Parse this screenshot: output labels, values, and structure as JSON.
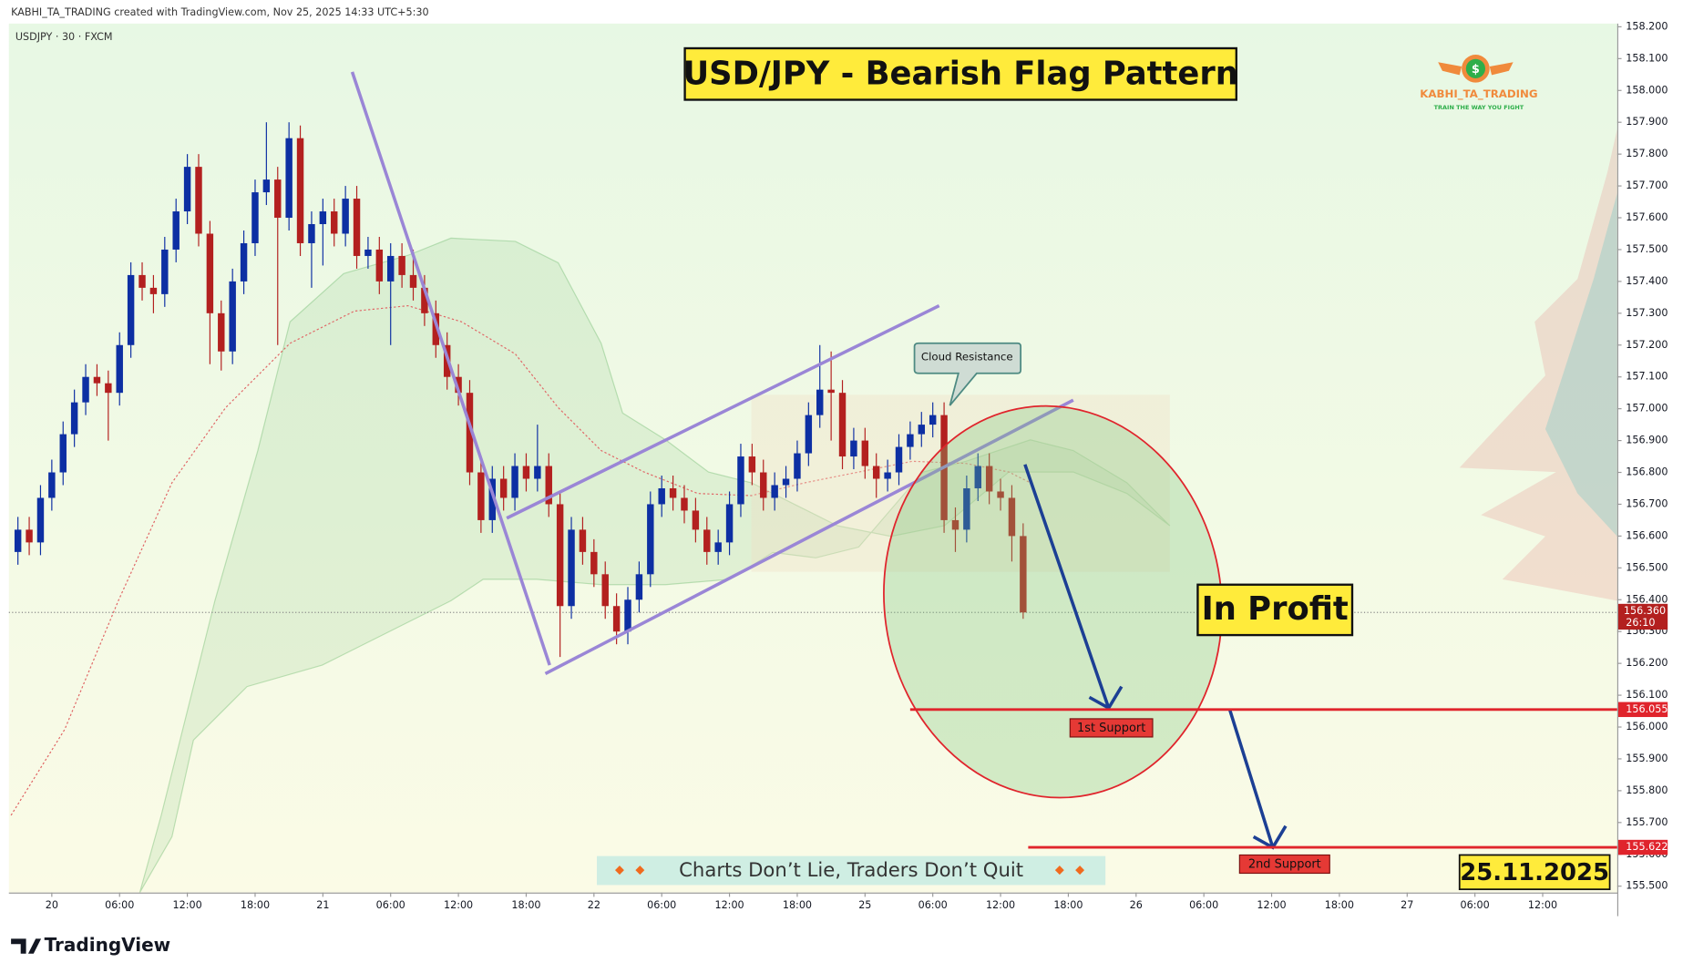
{
  "header": "KABHI_TA_TRADING created with TradingView.com, Nov 25, 2025 14:33 UTC+5:30",
  "symbol": "USDJPY · 30 · FXCM",
  "brand": "TradingView",
  "logo": {
    "symbol": "$",
    "name": "KABHI_TA_TRADING",
    "slogan": "TRAIN THE WAY YOU FIGHT"
  },
  "chart_data": {
    "type": "candlestick",
    "title": "USD/JPY - Bearish Flag  Pattern",
    "up_color": "#0d2fa3",
    "down_color": "#b3201f",
    "x": [
      -3,
      -2,
      -1,
      0,
      1,
      2,
      3,
      4,
      5,
      6,
      7,
      8,
      9,
      10,
      11,
      12,
      13,
      14,
      15,
      16,
      17,
      18,
      19,
      20,
      21,
      22,
      23,
      24,
      25,
      26,
      27,
      28,
      29,
      30,
      31,
      32,
      33,
      34,
      35,
      36,
      37,
      38,
      39,
      40,
      41,
      42,
      43,
      44,
      45,
      46,
      47,
      48,
      49,
      50,
      51,
      52,
      53,
      54,
      55,
      56,
      57,
      58,
      59,
      60,
      61,
      62,
      63,
      64,
      65,
      66,
      67,
      68,
      69,
      70,
      71,
      72,
      73,
      74,
      75,
      76,
      77,
      78,
      79,
      80,
      81,
      82,
      83,
      84,
      85,
      86
    ],
    "open": [
      156.55,
      156.62,
      156.58,
      156.72,
      156.8,
      156.92,
      157.02,
      157.1,
      157.08,
      157.05,
      157.2,
      157.42,
      157.38,
      157.36,
      157.5,
      157.62,
      157.76,
      157.55,
      157.3,
      157.18,
      157.4,
      157.52,
      157.68,
      157.72,
      157.6,
      157.85,
      157.52,
      157.58,
      157.62,
      157.55,
      157.66,
      157.48,
      157.5,
      157.4,
      157.48,
      157.42,
      157.38,
      157.3,
      157.2,
      157.1,
      157.05,
      156.8,
      156.65,
      156.78,
      156.72,
      156.82,
      156.78,
      156.82,
      156.7,
      156.38,
      156.62,
      156.55,
      156.48,
      156.38,
      156.3,
      156.4,
      156.48,
      156.7,
      156.75,
      156.72,
      156.68,
      156.62,
      156.55,
      156.58,
      156.7,
      156.85,
      156.8,
      156.72,
      156.76,
      156.78,
      156.86,
      156.98,
      157.06,
      157.05,
      156.85,
      156.9,
      156.82,
      156.78,
      156.8,
      156.88,
      156.92,
      156.95,
      156.98,
      156.65,
      156.62,
      156.75,
      156.82,
      156.74,
      156.72,
      156.6
    ],
    "high": [
      156.66,
      156.66,
      156.76,
      156.84,
      156.96,
      157.06,
      157.14,
      157.14,
      157.12,
      157.24,
      157.46,
      157.46,
      157.42,
      157.54,
      157.66,
      157.8,
      157.8,
      157.59,
      157.34,
      157.44,
      157.56,
      157.72,
      157.9,
      157.76,
      157.9,
      157.89,
      157.62,
      157.66,
      157.66,
      157.7,
      157.7,
      157.54,
      157.54,
      157.52,
      157.52,
      157.5,
      157.42,
      157.34,
      157.24,
      157.14,
      157.09,
      156.84,
      156.82,
      156.82,
      156.86,
      156.86,
      156.95,
      156.86,
      156.74,
      156.66,
      156.66,
      156.59,
      156.52,
      156.42,
      156.44,
      156.52,
      156.74,
      156.79,
      156.79,
      156.76,
      156.72,
      156.66,
      156.62,
      156.74,
      156.89,
      156.89,
      156.84,
      156.8,
      156.82,
      156.9,
      157.02,
      157.2,
      157.18,
      157.09,
      156.94,
      156.94,
      156.86,
      156.84,
      156.92,
      156.96,
      156.99,
      157.02,
      157.02,
      156.69,
      156.79,
      156.86,
      156.86,
      156.78,
      156.76,
      156.64
    ],
    "low": [
      156.51,
      156.54,
      156.54,
      156.68,
      156.76,
      156.88,
      156.98,
      157.04,
      156.9,
      157.01,
      157.16,
      157.34,
      157.3,
      157.32,
      157.46,
      157.58,
      157.51,
      157.14,
      157.12,
      157.14,
      157.36,
      157.48,
      157.64,
      157.2,
      157.56,
      157.48,
      157.38,
      157.45,
      157.51,
      157.51,
      157.44,
      157.44,
      157.36,
      157.2,
      157.38,
      157.34,
      157.26,
      157.16,
      157.06,
      157.01,
      156.76,
      156.61,
      156.61,
      156.68,
      156.68,
      156.74,
      156.74,
      156.66,
      156.22,
      156.34,
      156.51,
      156.44,
      156.34,
      156.26,
      156.26,
      156.36,
      156.44,
      156.66,
      156.68,
      156.64,
      156.58,
      156.51,
      156.51,
      156.54,
      156.66,
      156.76,
      156.68,
      156.68,
      156.72,
      156.74,
      156.82,
      156.94,
      156.9,
      156.81,
      156.81,
      156.78,
      156.72,
      156.74,
      156.76,
      156.84,
      156.88,
      156.91,
      156.61,
      156.55,
      156.58,
      156.71,
      156.7,
      156.68,
      156.52,
      156.34
    ],
    "close": [
      156.62,
      156.58,
      156.72,
      156.8,
      156.92,
      157.02,
      157.1,
      157.08,
      157.05,
      157.2,
      157.42,
      157.38,
      157.36,
      157.5,
      157.62,
      157.76,
      157.55,
      157.3,
      157.18,
      157.4,
      157.52,
      157.68,
      157.72,
      157.6,
      157.85,
      157.52,
      157.58,
      157.62,
      157.55,
      157.66,
      157.48,
      157.5,
      157.4,
      157.48,
      157.42,
      157.38,
      157.3,
      157.2,
      157.1,
      157.05,
      156.8,
      156.65,
      156.78,
      156.72,
      156.82,
      156.78,
      156.82,
      156.7,
      156.38,
      156.62,
      156.55,
      156.48,
      156.38,
      156.3,
      156.4,
      156.48,
      156.7,
      156.75,
      156.72,
      156.68,
      156.62,
      156.55,
      156.58,
      156.7,
      156.85,
      156.8,
      156.72,
      156.76,
      156.78,
      156.86,
      156.98,
      157.06,
      157.05,
      156.85,
      156.9,
      156.82,
      156.78,
      156.8,
      156.88,
      156.92,
      156.95,
      156.98,
      156.65,
      156.62,
      156.75,
      156.82,
      156.74,
      156.72,
      156.6,
      156.36
    ],
    "xlim": [
      -3.8,
      138.6
    ],
    "xticks": [
      {
        "value": 0,
        "label": "20"
      },
      {
        "value": 6,
        "label": "06:00"
      },
      {
        "value": 12,
        "label": "12:00"
      },
      {
        "value": 18,
        "label": "18:00"
      },
      {
        "value": 24,
        "label": "21"
      },
      {
        "value": 30,
        "label": "06:00"
      },
      {
        "value": 36,
        "label": "12:00"
      },
      {
        "value": 42,
        "label": "18:00"
      },
      {
        "value": 48,
        "label": "22"
      },
      {
        "value": 54,
        "label": "06:00"
      },
      {
        "value": 60,
        "label": "12:00"
      },
      {
        "value": 66,
        "label": "18:00"
      },
      {
        "value": 72,
        "label": "25"
      },
      {
        "value": 78,
        "label": "06:00"
      },
      {
        "value": 84,
        "label": "12:00"
      },
      {
        "value": 90,
        "label": "18:00"
      },
      {
        "value": 96,
        "label": "26"
      },
      {
        "value": 102,
        "label": "06:00"
      },
      {
        "value": 108,
        "label": "12:00"
      },
      {
        "value": 114,
        "label": "18:00"
      },
      {
        "value": 120,
        "label": "27"
      },
      {
        "value": 126,
        "label": "06:00"
      },
      {
        "value": 132,
        "label": "12:00"
      }
    ],
    "ylim": [
      155.48,
      158.21
    ],
    "yticks": [
      {
        "value": 155.5,
        "label": "155.500"
      },
      {
        "value": 155.6,
        "label": "155.600"
      },
      {
        "value": 155.7,
        "label": "155.700"
      },
      {
        "value": 155.8,
        "label": "155.800"
      },
      {
        "value": 155.9,
        "label": "155.900"
      },
      {
        "value": 156.0,
        "label": "156.000"
      },
      {
        "value": 156.1,
        "label": "156.100"
      },
      {
        "value": 156.2,
        "label": "156.200"
      },
      {
        "value": 156.3,
        "label": "156.300"
      },
      {
        "value": 156.4,
        "label": "156.400"
      },
      {
        "value": 156.5,
        "label": "156.500"
      },
      {
        "value": 156.6,
        "label": "156.600"
      },
      {
        "value": 156.7,
        "label": "156.700"
      },
      {
        "value": 156.8,
        "label": "156.800"
      },
      {
        "value": 156.9,
        "label": "156.900"
      },
      {
        "value": 157.0,
        "label": "157.000"
      },
      {
        "value": 157.1,
        "label": "157.100"
      },
      {
        "value": 157.2,
        "label": "157.200"
      },
      {
        "value": 157.3,
        "label": "157.300"
      },
      {
        "value": 157.4,
        "label": "157.400"
      },
      {
        "value": 157.5,
        "label": "157.500"
      },
      {
        "value": 157.6,
        "label": "157.600"
      },
      {
        "value": 157.7,
        "label": "157.700"
      },
      {
        "value": 157.8,
        "label": "157.800"
      },
      {
        "value": 157.9,
        "label": "157.900"
      },
      {
        "value": 158.0,
        "label": "158.000"
      },
      {
        "value": 158.1,
        "label": "158.100"
      },
      {
        "value": 158.2,
        "label": "158.200"
      }
    ],
    "last_price": {
      "value": 156.36,
      "label": "156.360",
      "countdown": "26:10"
    },
    "levels": [
      {
        "name": "1st Support",
        "value": 156.055,
        "color": "#e0242c"
      },
      {
        "name": "2nd Support",
        "value": 155.622,
        "color": "#e0242c"
      }
    ],
    "annotations": {
      "cloud": "Cloud Resistance",
      "profit": "In Profit",
      "motto": "Charts Don’t Lie, Traders Don’t Quit",
      "date": "25.11.2025"
    }
  }
}
